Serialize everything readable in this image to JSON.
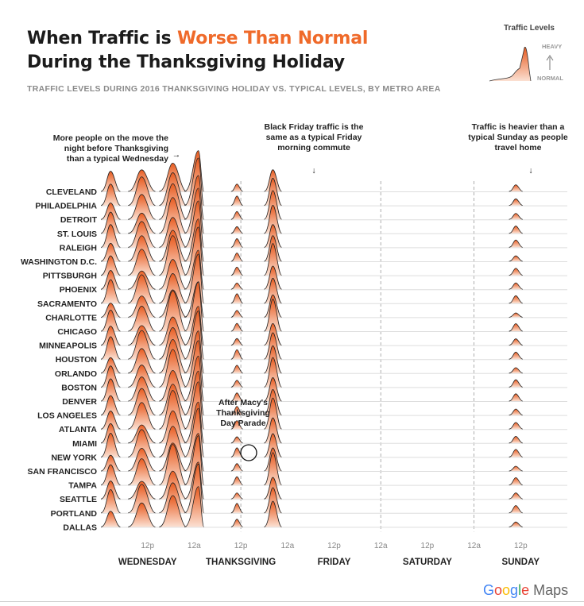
{
  "header": {
    "title_line1_prefix": "When Traffic is ",
    "title_line1_accent": "Worse Than Normal",
    "title_line2": "During the Thanksgiving Holiday",
    "subtitle": "TRAFFIC LEVELS DURING 2016 THANKSGIVING HOLIDAY VS. TYPICAL LEVELS, BY METRO AREA"
  },
  "legend": {
    "title": "Traffic Levels",
    "heavy": "HEAVY",
    "normal": "NORMAL"
  },
  "colors": {
    "accent": "#ef6a2a",
    "fill_dark": "#e85a1e",
    "fill_light": "#fbe0d2",
    "line": "#222222",
    "grid": "#dddddd",
    "day_divider": "#999999"
  },
  "brand": {
    "g1": "G",
    "g2": "o",
    "g3": "o",
    "g4": "g",
    "g5": "l",
    "g6": "e",
    "maps": "Maps"
  },
  "chart_data": {
    "type": "ridgeline",
    "title": "When Traffic is Worse Than Normal During the Thanksgiving Holiday",
    "subtitle": "TRAFFIC LEVELS DURING 2016 THANKSGIVING HOLIDAY VS. TYPICAL LEVELS, BY METRO AREA",
    "metros": [
      "CLEVELAND",
      "PHILADELPHIA",
      "DETROIT",
      "ST. LOUIS",
      "RALEIGH",
      "WASHINGTON D.C.",
      "PITTSBURGH",
      "PHOENIX",
      "SACRAMENTO",
      "CHARLOTTE",
      "CHICAGO",
      "MINNEAPOLIS",
      "HOUSTON",
      "ORLANDO",
      "BOSTON",
      "DENVER",
      "LOS ANGELES",
      "ATLANTA",
      "MIAMI",
      "NEW YORK",
      "SAN FRANCISCO",
      "TAMPA",
      "SEATTLE",
      "PORTLAND",
      "DALLAS"
    ],
    "x_ticks": [
      {
        "hour": 12,
        "label": "12p"
      },
      {
        "hour": 24,
        "label": "12a"
      },
      {
        "hour": 36,
        "label": "12p"
      },
      {
        "hour": 48,
        "label": "12a"
      },
      {
        "hour": 60,
        "label": "12p"
      },
      {
        "hour": 72,
        "label": "12a"
      },
      {
        "hour": 84,
        "label": "12p"
      },
      {
        "hour": 96,
        "label": "12a"
      },
      {
        "hour": 108,
        "label": "12p"
      }
    ],
    "days": [
      {
        "label": "WEDNESDAY",
        "center_hour": 12
      },
      {
        "label": "THANKSGIVING",
        "center_hour": 36
      },
      {
        "label": "FRIDAY",
        "center_hour": 60
      },
      {
        "label": "SATURDAY",
        "center_hour": 84
      },
      {
        "label": "SUNDAY",
        "center_hour": 108
      }
    ],
    "x_range_hours": [
      0,
      120
    ],
    "y_scale": "traffic level relative to typical (0 = normal, 1 = heavy)",
    "annotations": [
      {
        "id": "wednesday_night",
        "lines": [
          "More people on the move the",
          "night before Thanksgiving",
          "than a typical Wednesday"
        ],
        "arrow": "→"
      },
      {
        "id": "black_friday",
        "lines": [
          "Black Friday traffic is the",
          "same as a typical Friday",
          "morning commute"
        ],
        "arrow": "↓"
      },
      {
        "id": "sunday",
        "lines": [
          "Traffic is heavier than a",
          "typical Sunday as people",
          "travel home"
        ],
        "arrow": "↓"
      },
      {
        "id": "macys",
        "lines": [
          "After Macy's",
          "Thanksgiving",
          "Day Parade"
        ]
      }
    ],
    "segments": [
      [
        0,
        5,
        0.45
      ],
      [
        7,
        14,
        0.55
      ],
      [
        15,
        22,
        0.75
      ],
      [
        21.5,
        26.5,
        1.0
      ],
      [
        33.5,
        36.5,
        0.18
      ],
      [
        42,
        46.5,
        0.6
      ],
      [
        105,
        108.5,
        0.15
      ]
    ],
    "dashed_at_hours": [
      36,
      72,
      96
    ]
  },
  "ui": {}
}
